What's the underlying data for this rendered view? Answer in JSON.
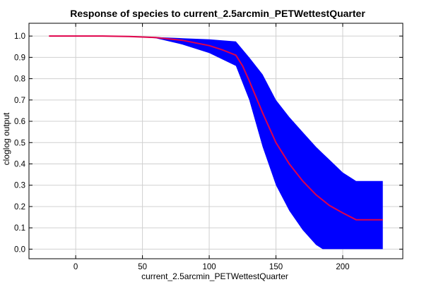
{
  "chart_data": {
    "type": "area",
    "title": "Response of species to current_2.5arcmin_PETWettestQuarter",
    "xlabel": "current_2.5arcmin_PETWettestQuarter",
    "ylabel": "cloglog output",
    "xlim": [
      -35,
      245
    ],
    "ylim": [
      -0.045,
      1.06
    ],
    "xticks": [
      0,
      50,
      100,
      150,
      200
    ],
    "yticks": [
      0.0,
      0.1,
      0.2,
      0.3,
      0.4,
      0.5,
      0.6,
      0.7,
      0.8,
      0.9,
      1.0
    ],
    "ytick_labels": [
      "0.0",
      "0.1",
      "0.2",
      "0.3",
      "0.4",
      "0.5",
      "0.6",
      "0.7",
      "0.8",
      "0.9",
      "1.0"
    ],
    "grid": true,
    "series": [
      {
        "role": "band",
        "color": "#0000ff",
        "x": [
          -20,
          0,
          20,
          40,
          60,
          80,
          100,
          110,
          120,
          130,
          140,
          150,
          160,
          170,
          180,
          185,
          190,
          200,
          210,
          230
        ],
        "upper": [
          1.0,
          1.0,
          1.0,
          1.0,
          0.995,
          0.99,
          0.985,
          0.98,
          0.975,
          0.9,
          0.82,
          0.7,
          0.62,
          0.55,
          0.48,
          0.45,
          0.42,
          0.36,
          0.32,
          0.32
        ],
        "lower": [
          1.0,
          1.0,
          1.0,
          0.998,
          0.99,
          0.96,
          0.92,
          0.89,
          0.86,
          0.7,
          0.48,
          0.3,
          0.18,
          0.09,
          0.02,
          0.0,
          0.0,
          0.0,
          0.0,
          0.0
        ]
      },
      {
        "role": "mean",
        "color": "#e0004a",
        "x": [
          -20,
          0,
          20,
          40,
          60,
          80,
          100,
          110,
          120,
          125,
          130,
          140,
          150,
          160,
          170,
          180,
          190,
          200,
          210,
          230
        ],
        "values": [
          1.0,
          1.0,
          1.0,
          0.998,
          0.993,
          0.98,
          0.955,
          0.935,
          0.91,
          0.86,
          0.79,
          0.64,
          0.5,
          0.4,
          0.32,
          0.255,
          0.205,
          0.17,
          0.138,
          0.138
        ]
      }
    ]
  }
}
